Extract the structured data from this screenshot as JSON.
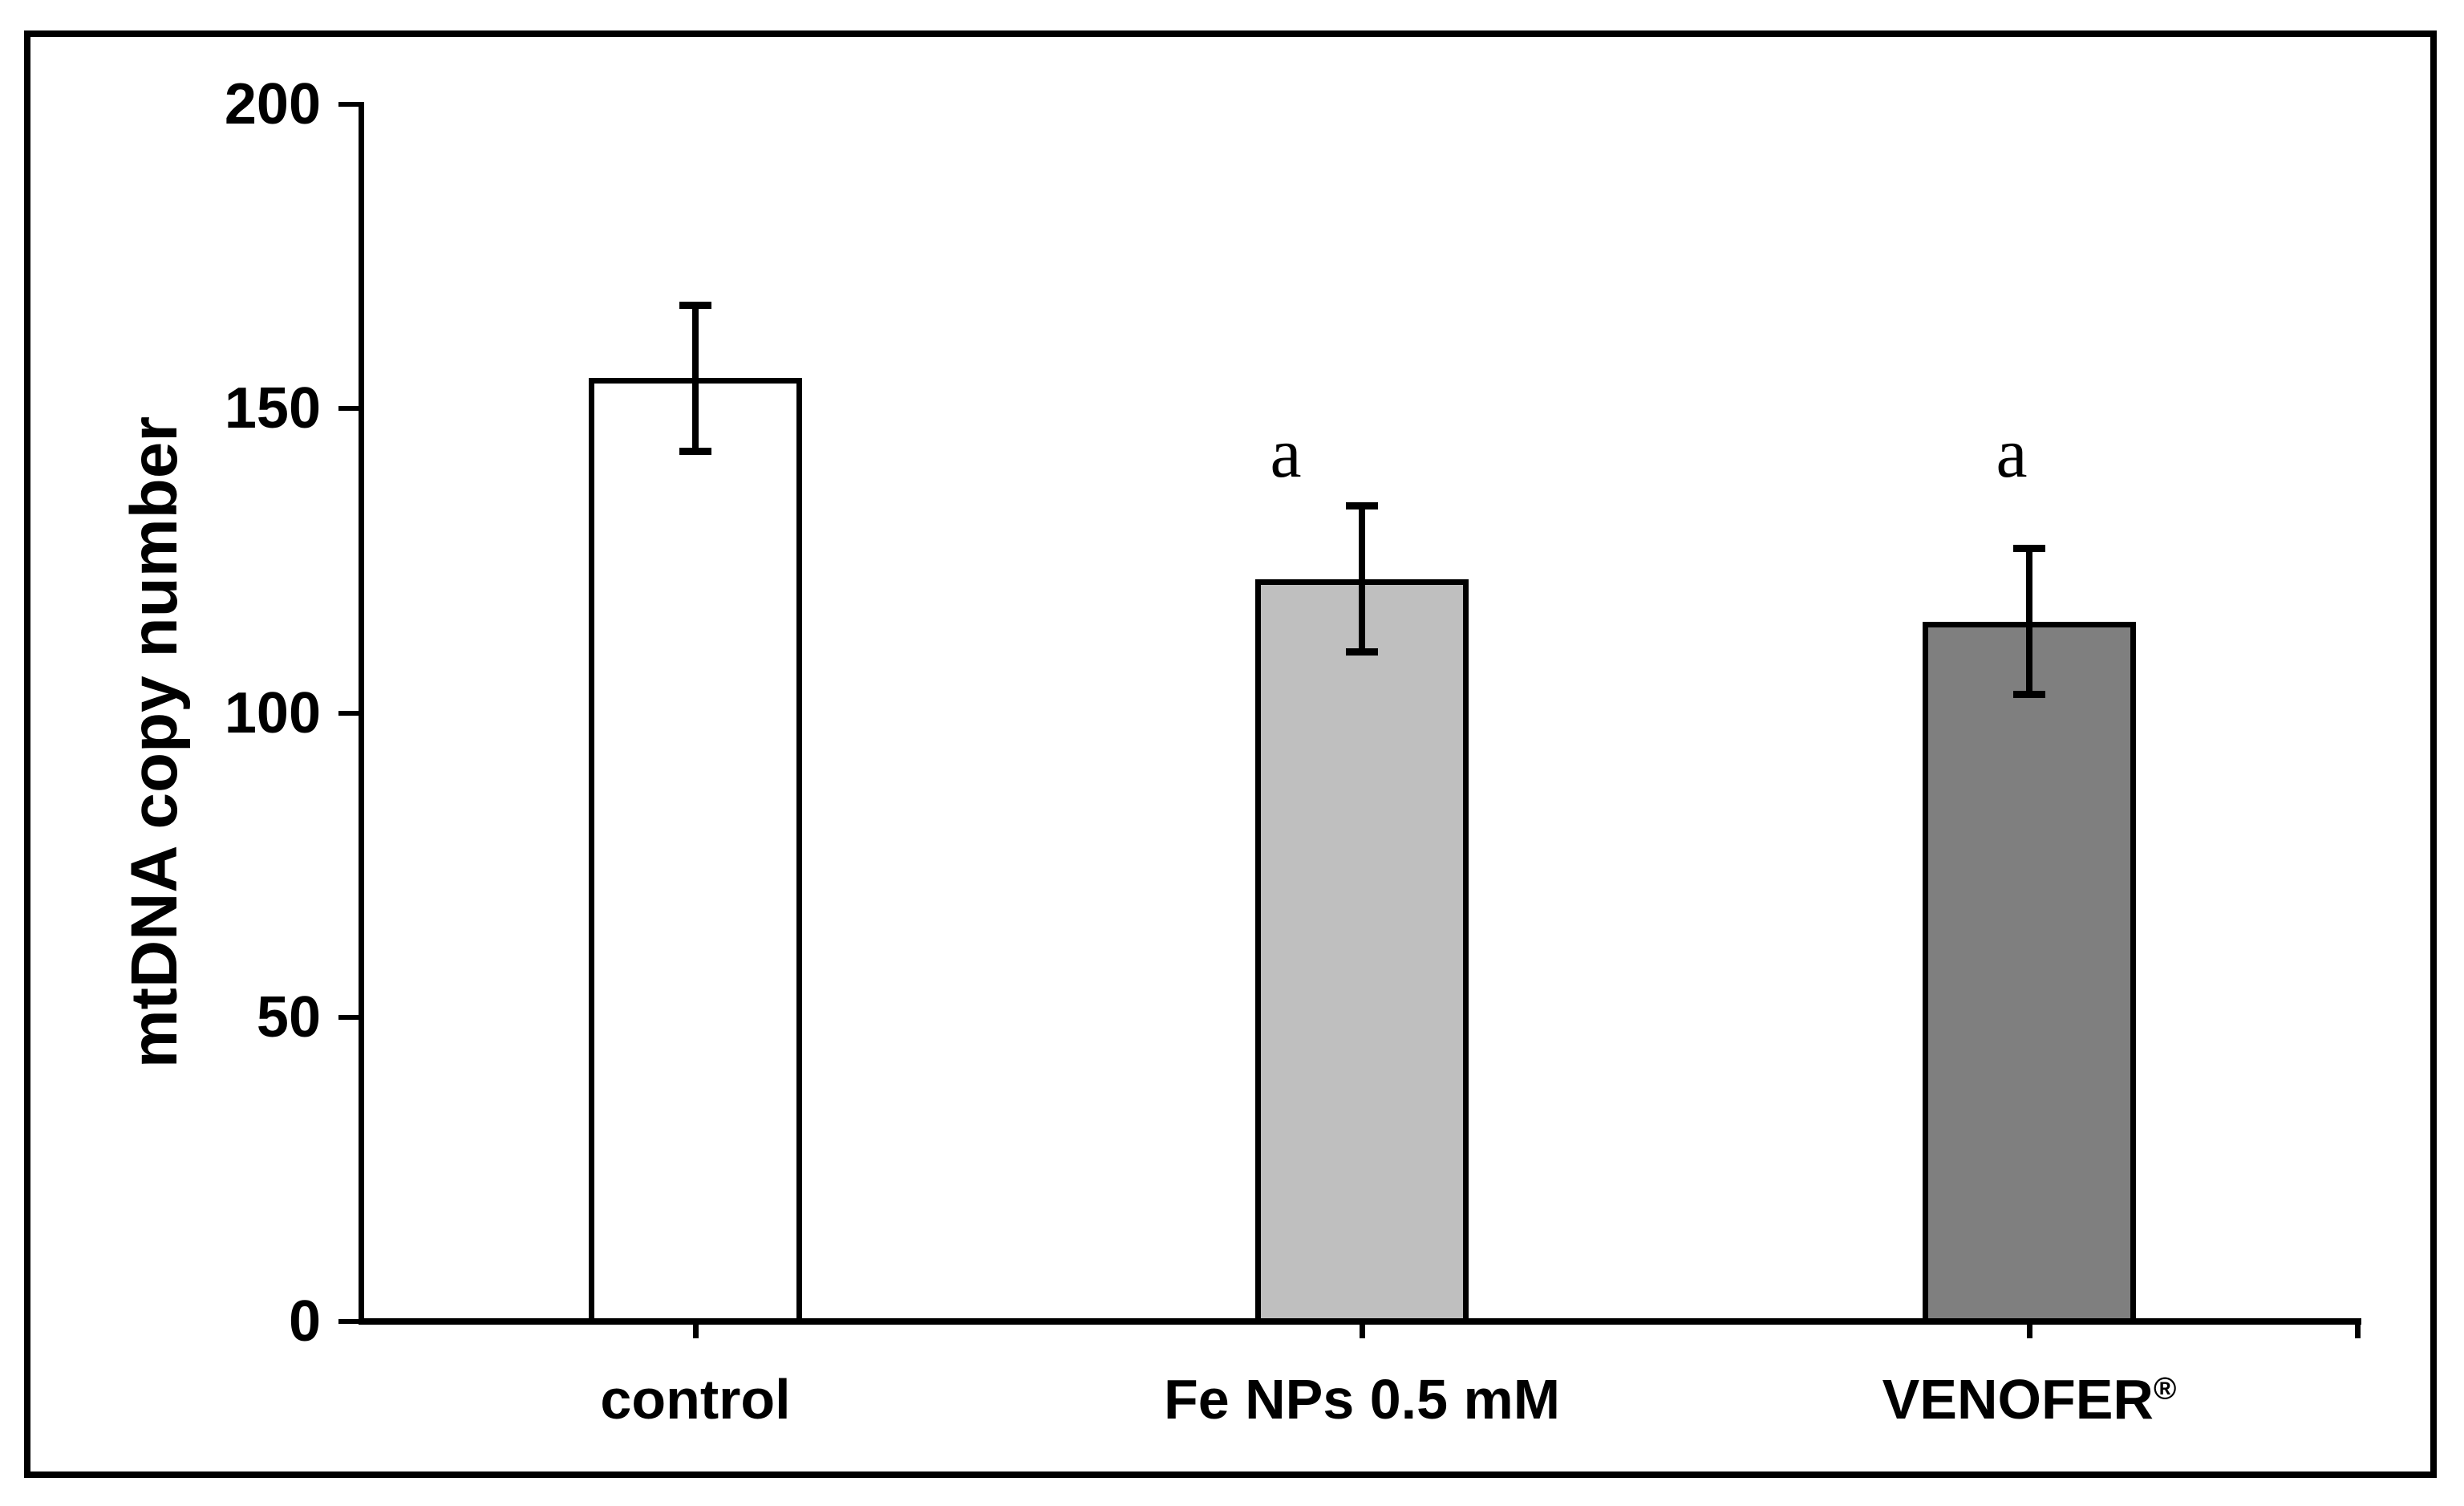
{
  "figure": {
    "background": "#ffffff",
    "frame_color": "#000000"
  },
  "chart_data": {
    "type": "bar",
    "title": "",
    "xlabel": "",
    "ylabel": "mtDNA copy number",
    "categories": [
      "control",
      "Fe NPs 0.5 mM",
      "VENOFER®"
    ],
    "values": [
      155,
      122,
      115
    ],
    "error_bars": [
      12,
      12,
      12
    ],
    "ylim": [
      0,
      200
    ],
    "yticks": [
      0,
      50,
      100,
      150,
      200
    ],
    "grid": "off",
    "legend": "none",
    "bar_fill_colors": [
      "#ffffff",
      "#bfbfbf",
      "#7f7f7f"
    ],
    "bar_border_color": "#000000",
    "axis_color": "#000000",
    "annotations": [
      {
        "text": "a",
        "category_index": 1
      },
      {
        "text": "a",
        "category_index": 2
      }
    ]
  }
}
